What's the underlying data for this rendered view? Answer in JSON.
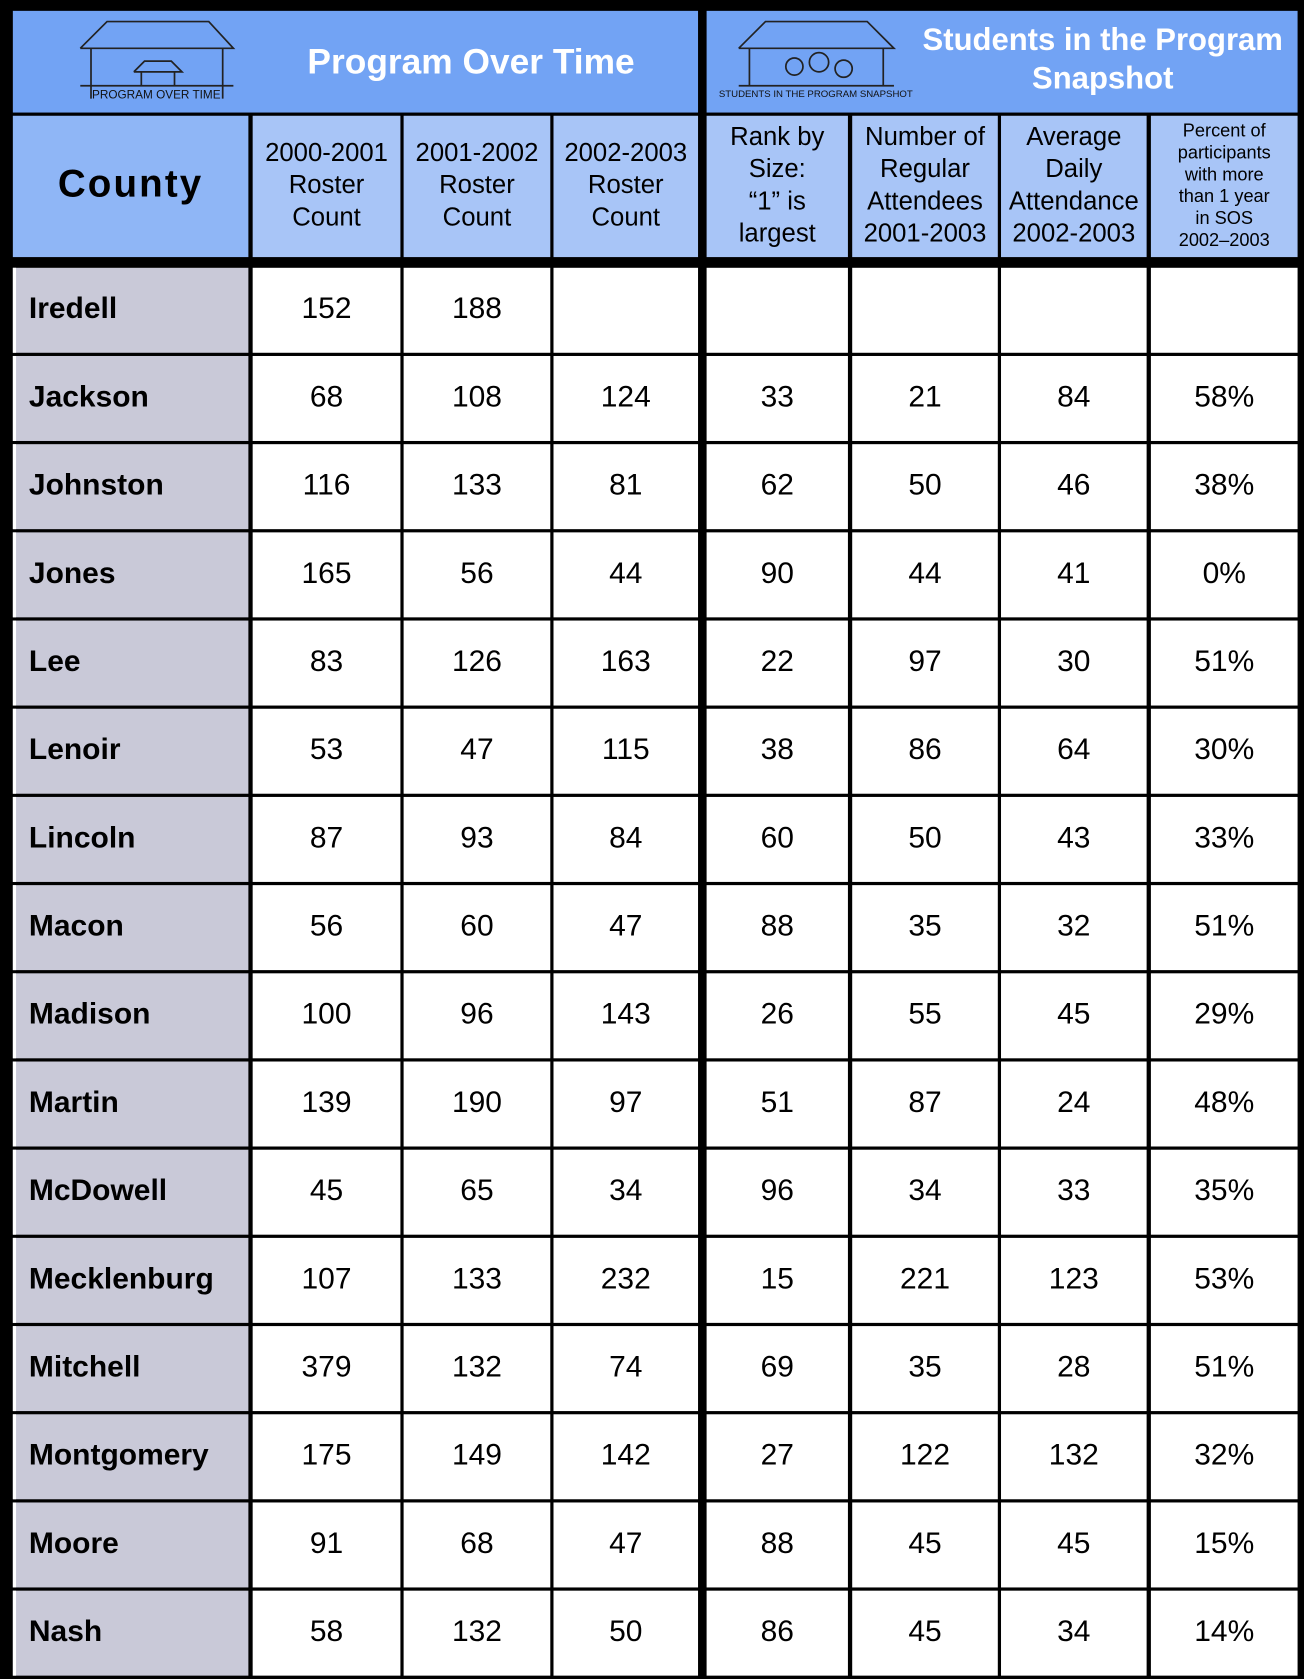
{
  "groups": [
    {
      "title": [
        "Program Over Time"
      ],
      "icon_label": "PROGRAM OVER TIME"
    },
    {
      "title": [
        "Students in the Program",
        "Snapshot"
      ],
      "icon_label": "STUDENTS IN THE PROGRAM SNAPSHOT"
    }
  ],
  "table": {
    "header": [
      [
        "County"
      ],
      [
        "2000-2001",
        "Roster",
        "Count"
      ],
      [
        "2001-2002",
        "Roster",
        "Count"
      ],
      [
        "2002-2003",
        "Roster",
        "Count"
      ],
      [
        "Rank by",
        "Size:",
        "“1” is",
        "largest"
      ],
      [
        "Number of",
        "Regular",
        "Attendees",
        "2001-2003"
      ],
      [
        "Average",
        "Daily",
        "Attendance",
        "2002-2003"
      ],
      [
        "Percent of",
        "participants",
        "with more",
        "than 1 year",
        "in SOS",
        "2002–2003"
      ]
    ],
    "rows": [
      [
        "Iredell",
        "152",
        "188",
        null,
        null,
        null,
        null,
        null
      ],
      [
        "Jackson",
        "68",
        "108",
        "124",
        "33",
        "21",
        "84",
        "58%"
      ],
      [
        "Johnston",
        "116",
        "133",
        "81",
        "62",
        "50",
        "46",
        "38%"
      ],
      [
        "Jones",
        "165",
        "56",
        "44",
        "90",
        "44",
        "41",
        "0%"
      ],
      [
        "Lee",
        "83",
        "126",
        "163",
        "22",
        "97",
        "30",
        "51%"
      ],
      [
        "Lenoir",
        "53",
        "47",
        "115",
        "38",
        "86",
        "64",
        "30%"
      ],
      [
        "Lincoln",
        "87",
        "93",
        "84",
        "60",
        "50",
        "43",
        "33%"
      ],
      [
        "Macon",
        "56",
        "60",
        "47",
        "88",
        "35",
        "32",
        "51%"
      ],
      [
        "Madison",
        "100",
        "96",
        "143",
        "26",
        "55",
        "45",
        "29%"
      ],
      [
        "Martin",
        "139",
        "190",
        "97",
        "51",
        "87",
        "24",
        "48%"
      ],
      [
        "McDowell",
        "45",
        "65",
        "34",
        "96",
        "34",
        "33",
        "35%"
      ],
      [
        "Mecklenburg",
        "107",
        "133",
        "232",
        "15",
        "221",
        "123",
        "53%"
      ],
      [
        "Mitchell",
        "379",
        "132",
        "74",
        "69",
        "35",
        "28",
        "51%"
      ],
      [
        "Montgomery",
        "175",
        "149",
        "142",
        "27",
        "122",
        "132",
        "32%"
      ],
      [
        "Moore",
        "91",
        "68",
        "47",
        "88",
        "45",
        "45",
        "15%"
      ],
      [
        "Nash",
        "58",
        "132",
        "50",
        "86",
        "45",
        "34",
        "14%"
      ]
    ]
  }
}
